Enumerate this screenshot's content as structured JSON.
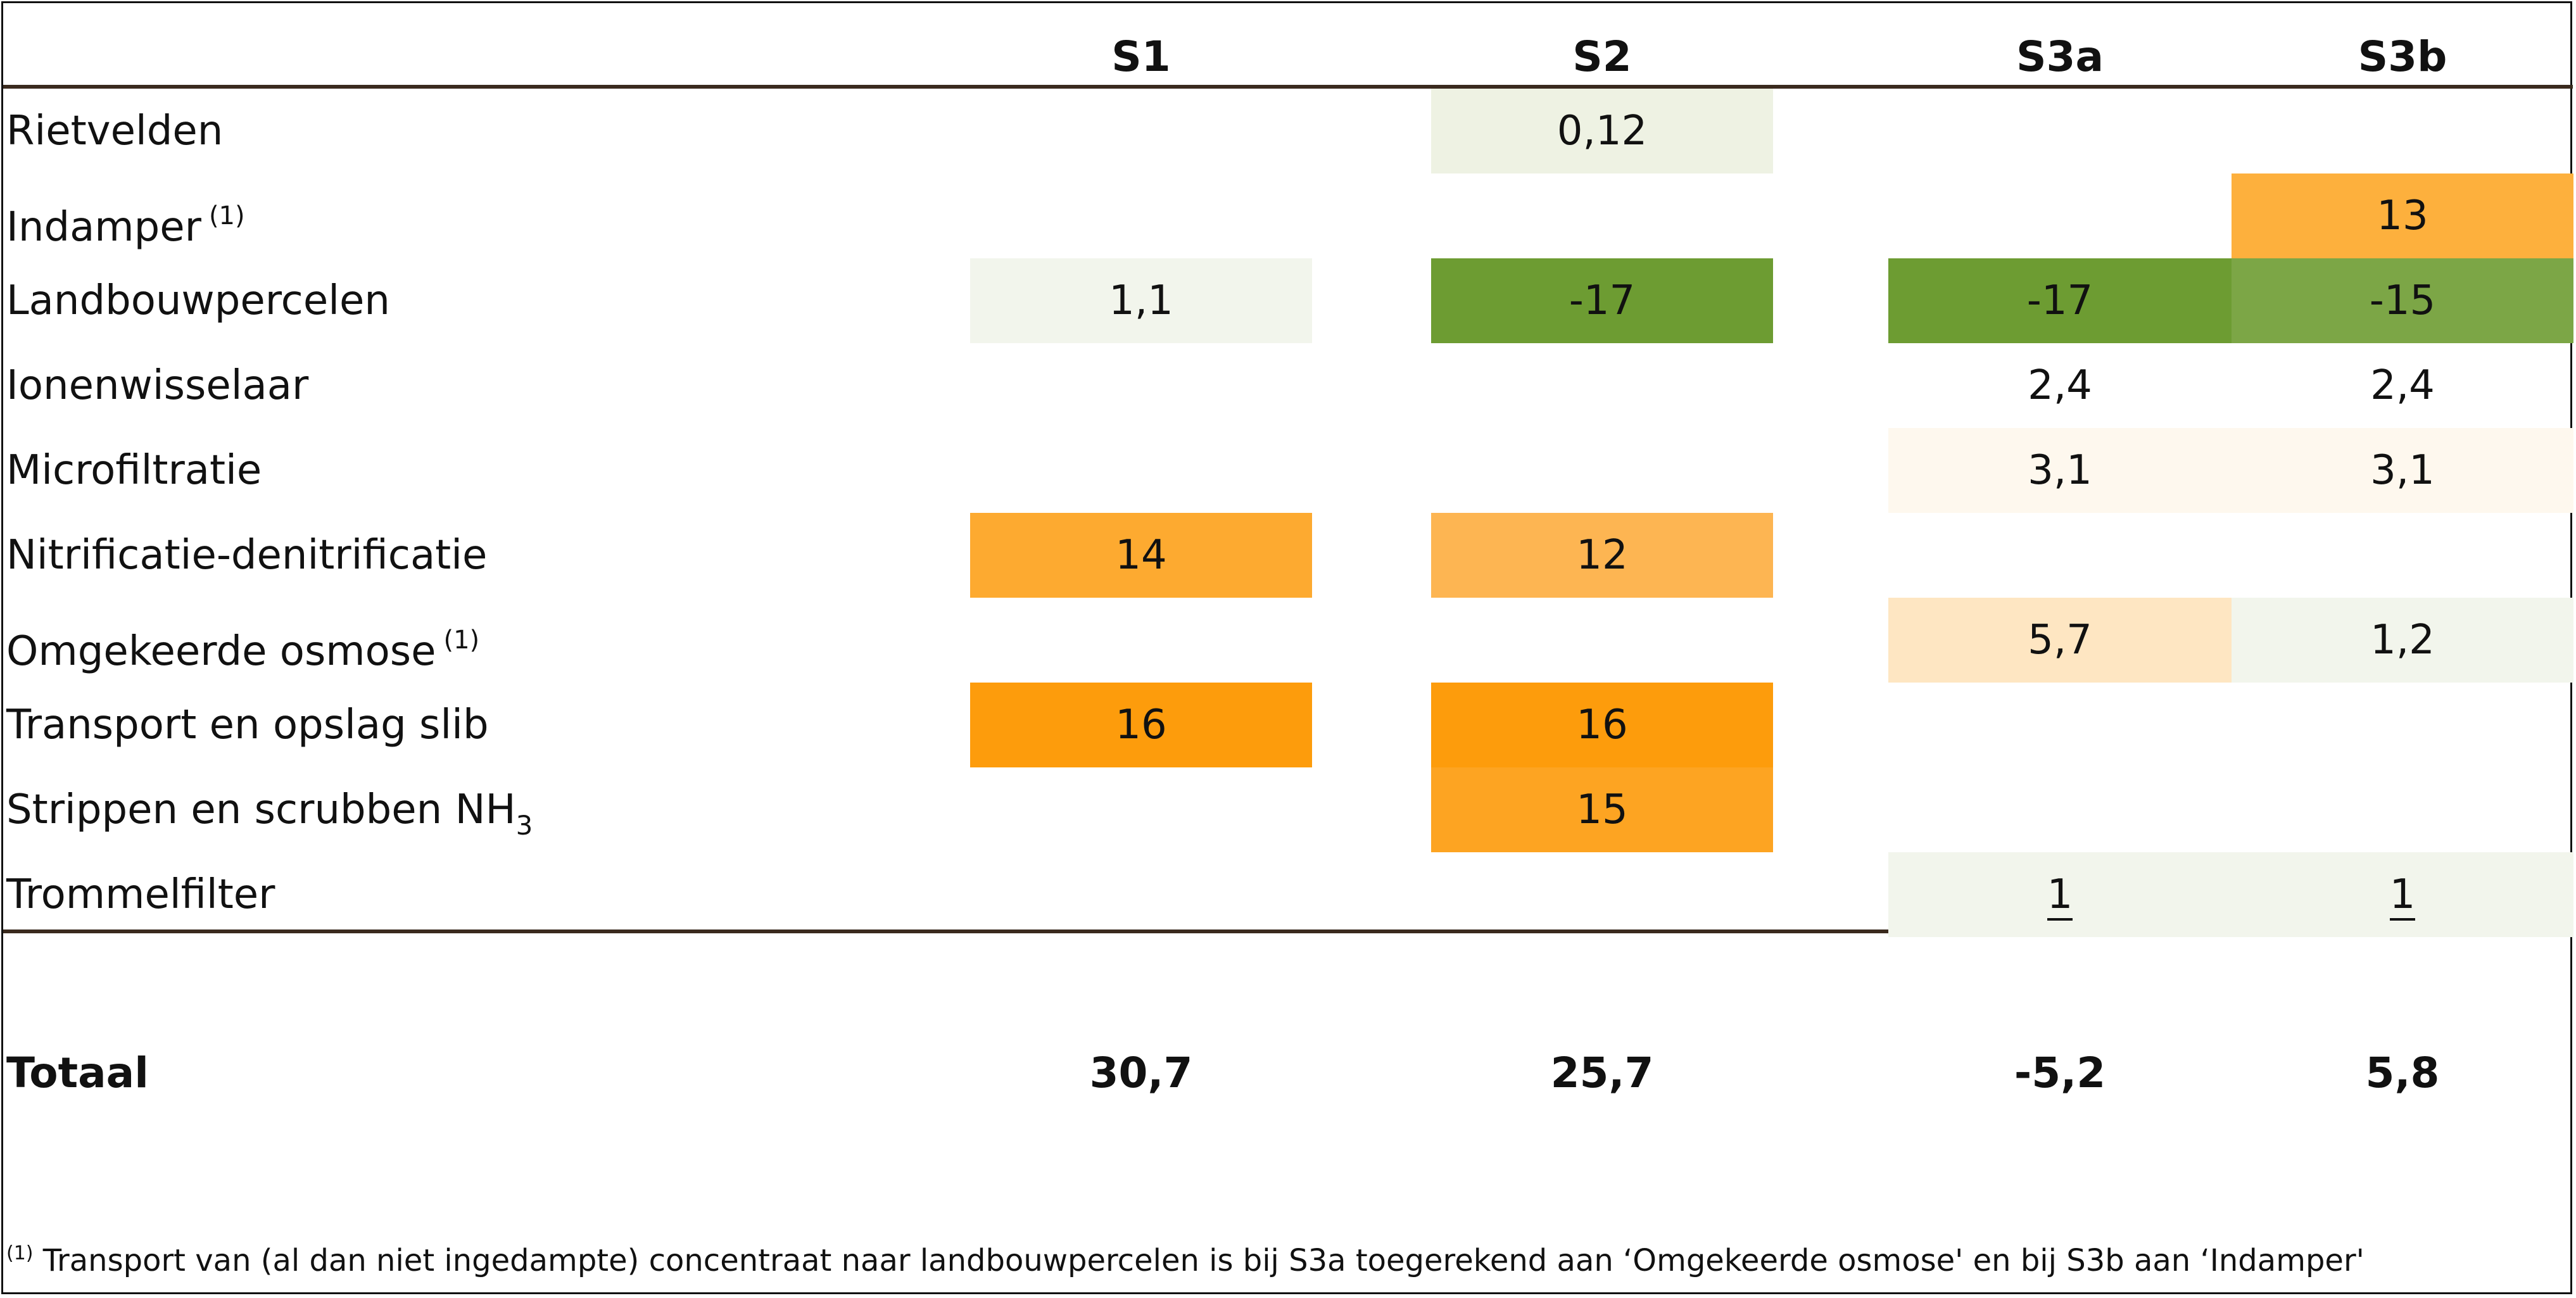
{
  "chart_data": {
    "type": "table",
    "columns": [
      "S1",
      "S2",
      "S3a",
      "S3b"
    ],
    "rows": [
      {
        "label": "Rietvelden",
        "note": "",
        "sub": "",
        "values": [
          "",
          "0,12",
          "",
          ""
        ],
        "fills": [
          "",
          "#eef2e3",
          "",
          ""
        ]
      },
      {
        "label": "Indamper",
        "note": "(1)",
        "sub": "",
        "values": [
          "",
          "",
          "",
          "13"
        ],
        "fills": [
          "",
          "",
          "",
          "#fdb03d"
        ]
      },
      {
        "label": "Landbouwpercelen",
        "note": "",
        "sub": "",
        "values": [
          "1,1",
          "-17",
          "-17",
          "-15"
        ],
        "fills": [
          "#f2f5ec",
          "#6d9c32",
          "#6d9c32",
          "#7ca646"
        ]
      },
      {
        "label": "Ionenwisselaar",
        "note": "",
        "sub": "",
        "values": [
          "",
          "",
          "2,4",
          "2,4"
        ],
        "fills": [
          "",
          "",
          "",
          ""
        ]
      },
      {
        "label": "Microfiltratie",
        "note": "",
        "sub": "",
        "values": [
          "",
          "",
          "3,1",
          "3,1"
        ],
        "fills": [
          "",
          "",
          "#fef8ee",
          "#fef8ee"
        ]
      },
      {
        "label": "Nitrificatie-denitrificatie",
        "note": "",
        "sub": "",
        "values": [
          "14",
          "12",
          "",
          ""
        ],
        "fills": [
          "#fdaa30",
          "#fdb552",
          "",
          ""
        ]
      },
      {
        "label": "Omgekeerde osmose",
        "note": "(1)",
        "sub": "",
        "values": [
          "",
          "",
          "5,7",
          "1,2"
        ],
        "fills": [
          "",
          "",
          "#fee6c2",
          "#f2f5ec"
        ]
      },
      {
        "label": "Transport en opslag slib",
        "note": "",
        "sub": "",
        "values": [
          "16",
          "16",
          "",
          ""
        ],
        "fills": [
          "#fd9c0c",
          "#fd9c0c",
          "",
          ""
        ]
      },
      {
        "label": "Strippen en scrubben NH",
        "note": "",
        "sub": "3",
        "values": [
          "",
          "15",
          "",
          ""
        ],
        "fills": [
          "",
          "#fda422",
          "",
          ""
        ]
      },
      {
        "label": "Trommelfilter",
        "note": "",
        "sub": "",
        "values": [
          "",
          "",
          "1",
          "1"
        ],
        "fills": [
          "",
          "",
          "#f2f5ec",
          "#f2f5ec"
        ]
      }
    ],
    "total": {
      "label": "Totaal",
      "values": [
        "30,7",
        "25,7",
        "-5,2",
        "5,8"
      ]
    }
  },
  "footnote": {
    "marker": "(1)",
    "text": " Transport van  (al dan niet ingedampte) concentraat naar landbouwpercelen is bij  S3a toegerekend aan ‘Omgekeerde osmose' en bij S3b aan ‘Indamper'"
  }
}
